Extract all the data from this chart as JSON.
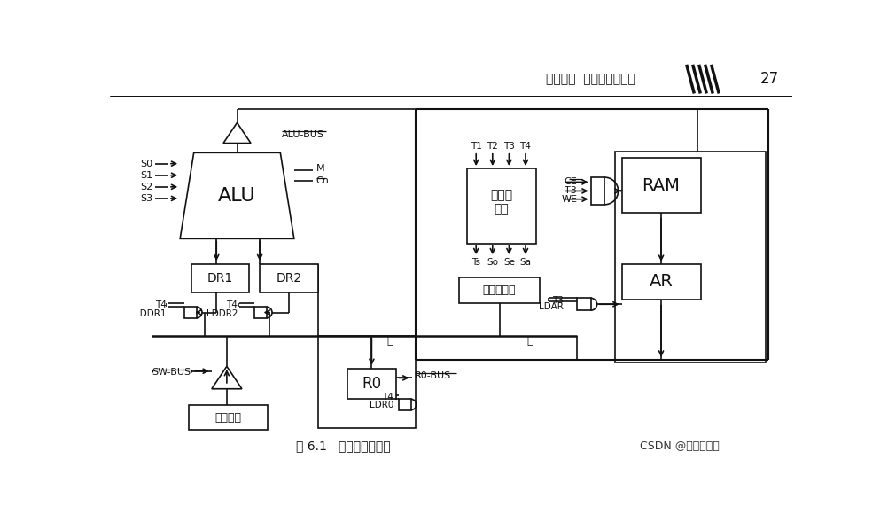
{
  "bg_color": "#f0f0f0",
  "line_color": "#111111",
  "title_text": "图 6.1   数据通路总框图",
  "header_text": "第一部分  实验与课程设计",
  "page_num": "27",
  "watermark": "CSDN @小航同学吖"
}
